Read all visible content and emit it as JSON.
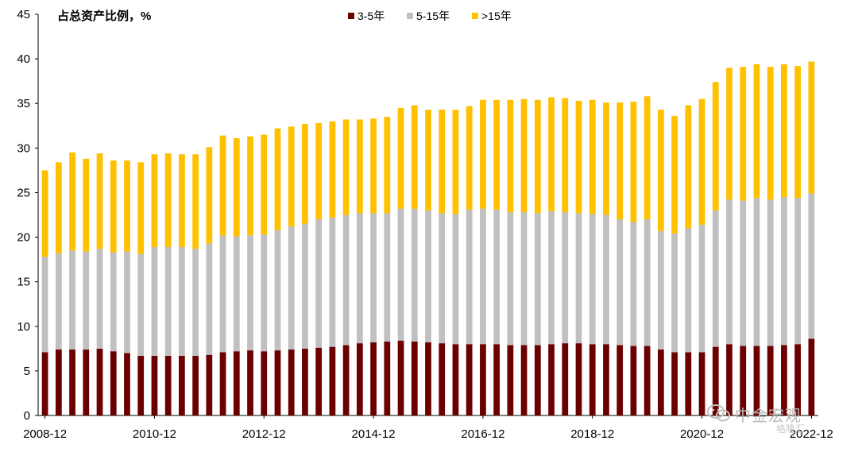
{
  "chart_data": {
    "type": "bar",
    "stacked": true,
    "ylabel": "占总资产比例，%",
    "ylim": [
      0,
      45
    ],
    "yticks": [
      0,
      5,
      10,
      15,
      20,
      25,
      30,
      35,
      40,
      45
    ],
    "grid": false,
    "legend_position": "top-center",
    "x_tick_labels": [
      "2008-12",
      "2010-12",
      "2012-12",
      "2014-12",
      "2016-12",
      "2018-12",
      "2020-12",
      "2022-12"
    ],
    "x_tick_label_indices": [
      0,
      8,
      16,
      24,
      32,
      40,
      48,
      56
    ],
    "quarters": [
      "2008-12",
      "2009-03",
      "2009-06",
      "2009-09",
      "2009-12",
      "2010-03",
      "2010-06",
      "2010-09",
      "2010-12",
      "2011-03",
      "2011-06",
      "2011-09",
      "2011-12",
      "2012-03",
      "2012-06",
      "2012-09",
      "2012-12",
      "2013-03",
      "2013-06",
      "2013-09",
      "2013-12",
      "2014-03",
      "2014-06",
      "2014-09",
      "2014-12",
      "2015-03",
      "2015-06",
      "2015-09",
      "2015-12",
      "2016-03",
      "2016-06",
      "2016-09",
      "2016-12",
      "2017-03",
      "2017-06",
      "2017-09",
      "2017-12",
      "2018-03",
      "2018-06",
      "2018-09",
      "2018-12",
      "2019-03",
      "2019-06",
      "2019-09",
      "2019-12",
      "2020-03",
      "2020-06",
      "2020-09",
      "2020-12",
      "2021-03",
      "2021-06",
      "2021-09",
      "2021-12",
      "2022-03",
      "2022-06",
      "2022-09",
      "2022-12"
    ],
    "series": [
      {
        "name": "3-5年",
        "color": "#6b0000",
        "values": [
          7.1,
          7.4,
          7.4,
          7.4,
          7.5,
          7.2,
          7.0,
          6.7,
          6.7,
          6.7,
          6.7,
          6.7,
          6.8,
          7.1,
          7.2,
          7.3,
          7.2,
          7.3,
          7.4,
          7.5,
          7.6,
          7.7,
          7.9,
          8.1,
          8.2,
          8.3,
          8.4,
          8.3,
          8.2,
          8.1,
          8.0,
          8.0,
          8.0,
          8.0,
          7.9,
          7.9,
          7.9,
          8.0,
          8.1,
          8.1,
          8.0,
          8.0,
          7.9,
          7.8,
          7.8,
          7.4,
          7.1,
          7.1,
          7.1,
          7.7,
          8.0,
          7.8,
          7.8,
          7.8,
          7.9,
          8.0,
          8.6
        ]
      },
      {
        "name": "5-15年",
        "color": "#c0c0c0",
        "values": [
          10.7,
          10.8,
          11.1,
          11.0,
          11.2,
          11.1,
          11.4,
          11.4,
          12.2,
          12.2,
          12.2,
          12.0,
          12.5,
          13.1,
          12.9,
          12.9,
          13.1,
          13.5,
          13.8,
          14.0,
          14.4,
          14.5,
          14.6,
          14.6,
          14.5,
          14.4,
          14.8,
          14.9,
          14.8,
          14.6,
          14.6,
          15.1,
          15.2,
          15.1,
          14.9,
          14.9,
          14.8,
          14.9,
          14.7,
          14.6,
          14.6,
          14.5,
          14.1,
          13.9,
          14.2,
          13.3,
          13.3,
          13.9,
          14.3,
          15.3,
          16.2,
          16.3,
          16.6,
          16.4,
          16.6,
          16.4,
          16.3
        ]
      },
      {
        "name": ">15年",
        "color": "#ffc000",
        "values": [
          9.7,
          10.2,
          11.0,
          10.4,
          10.7,
          10.3,
          10.2,
          10.3,
          10.4,
          10.5,
          10.4,
          10.6,
          10.8,
          11.2,
          11.0,
          11.1,
          11.2,
          11.4,
          11.2,
          11.2,
          10.8,
          10.8,
          10.7,
          10.5,
          10.6,
          10.8,
          11.3,
          11.6,
          11.3,
          11.6,
          11.7,
          11.6,
          12.2,
          12.3,
          12.6,
          12.7,
          12.7,
          12.8,
          12.8,
          12.6,
          12.8,
          12.6,
          13.1,
          13.5,
          13.8,
          13.6,
          13.2,
          13.8,
          14.1,
          14.4,
          14.8,
          15.0,
          15.0,
          14.9,
          14.9,
          14.8,
          14.8
        ]
      }
    ]
  },
  "watermark": {
    "main": "中金宏观",
    "sub": "格隆汇"
  }
}
